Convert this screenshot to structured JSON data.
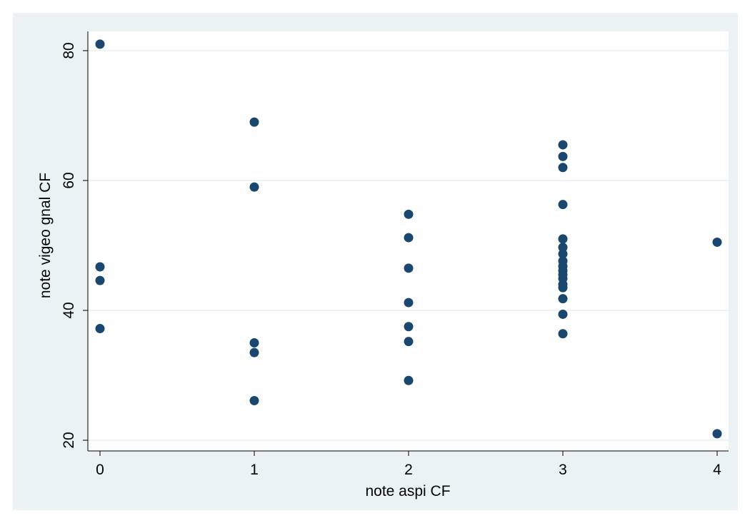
{
  "chart_data": {
    "type": "scatter",
    "title": "",
    "xlabel": "note aspi CF",
    "ylabel": "note vigeo gnal CF",
    "xlim": [
      0,
      4
    ],
    "ylim": [
      20,
      80
    ],
    "xticks": [
      "0",
      "1",
      "2",
      "3",
      "4"
    ],
    "yticks": [
      "20",
      "40",
      "60",
      "80"
    ],
    "grid": "horizontal",
    "colors": {
      "outer_background": "#eaf2f3",
      "plot_background": "#ffffff",
      "marker": "#1a476f",
      "gridline": "#eaf2f3"
    },
    "points": [
      {
        "x": 0,
        "y": 81.0
      },
      {
        "x": 0,
        "y": 46.7
      },
      {
        "x": 0,
        "y": 44.6
      },
      {
        "x": 0,
        "y": 37.2
      },
      {
        "x": 1,
        "y": 69.0
      },
      {
        "x": 1,
        "y": 59.0
      },
      {
        "x": 1,
        "y": 35.0
      },
      {
        "x": 1,
        "y": 33.5
      },
      {
        "x": 1,
        "y": 26.1
      },
      {
        "x": 2,
        "y": 54.8
      },
      {
        "x": 2,
        "y": 51.2
      },
      {
        "x": 2,
        "y": 46.5
      },
      {
        "x": 2,
        "y": 41.2
      },
      {
        "x": 2,
        "y": 37.5
      },
      {
        "x": 2,
        "y": 35.2
      },
      {
        "x": 2,
        "y": 29.2
      },
      {
        "x": 3,
        "y": 65.5
      },
      {
        "x": 3,
        "y": 63.7
      },
      {
        "x": 3,
        "y": 62.0
      },
      {
        "x": 3,
        "y": 56.3
      },
      {
        "x": 3,
        "y": 51.0
      },
      {
        "x": 3,
        "y": 49.7
      },
      {
        "x": 3,
        "y": 48.7
      },
      {
        "x": 3,
        "y": 47.6
      },
      {
        "x": 3,
        "y": 46.8
      },
      {
        "x": 3,
        "y": 46.1
      },
      {
        "x": 3,
        "y": 45.5
      },
      {
        "x": 3,
        "y": 44.9
      },
      {
        "x": 3,
        "y": 44.0
      },
      {
        "x": 3,
        "y": 43.5
      },
      {
        "x": 3,
        "y": 41.8
      },
      {
        "x": 3,
        "y": 39.4
      },
      {
        "x": 3,
        "y": 36.4
      },
      {
        "x": 4,
        "y": 50.5
      },
      {
        "x": 4,
        "y": 21.0
      }
    ]
  }
}
